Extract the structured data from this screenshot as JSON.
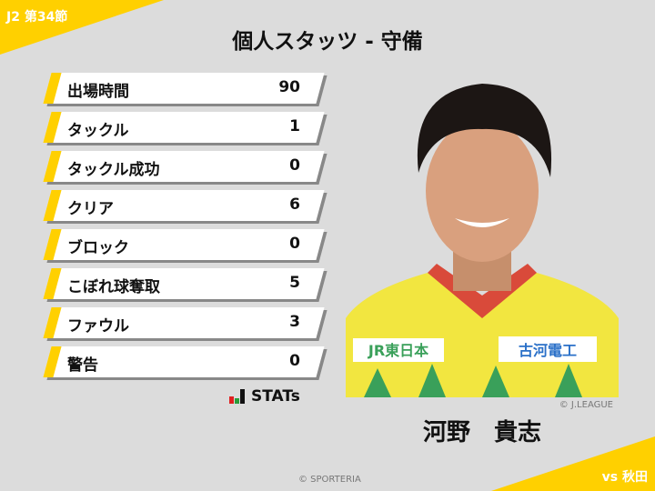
{
  "header": {
    "round": "J2 第34節",
    "title": "個人スタッツ - 守備",
    "opponent": "vs 秋田"
  },
  "stats": [
    {
      "label": "出場時間",
      "value": "90"
    },
    {
      "label": "タックル",
      "value": "1"
    },
    {
      "label": "タックル成功",
      "value": "0"
    },
    {
      "label": "クリア",
      "value": "6"
    },
    {
      "label": "ブロック",
      "value": "0"
    },
    {
      "label": "こぼれ球奪取",
      "value": "5"
    },
    {
      "label": "ファウル",
      "value": "3"
    },
    {
      "label": "警告",
      "value": "0"
    }
  ],
  "brand": {
    "stats_logo": "STATs",
    "sporteria": "© SPORTERIA"
  },
  "player": {
    "name": "河野　貴志",
    "photo_credit": "© J.LEAGUE",
    "sponsors": [
      "JR東日本",
      "古河電工"
    ]
  },
  "colors": {
    "accent": "#ffd000",
    "background": "#dcdcdc"
  }
}
